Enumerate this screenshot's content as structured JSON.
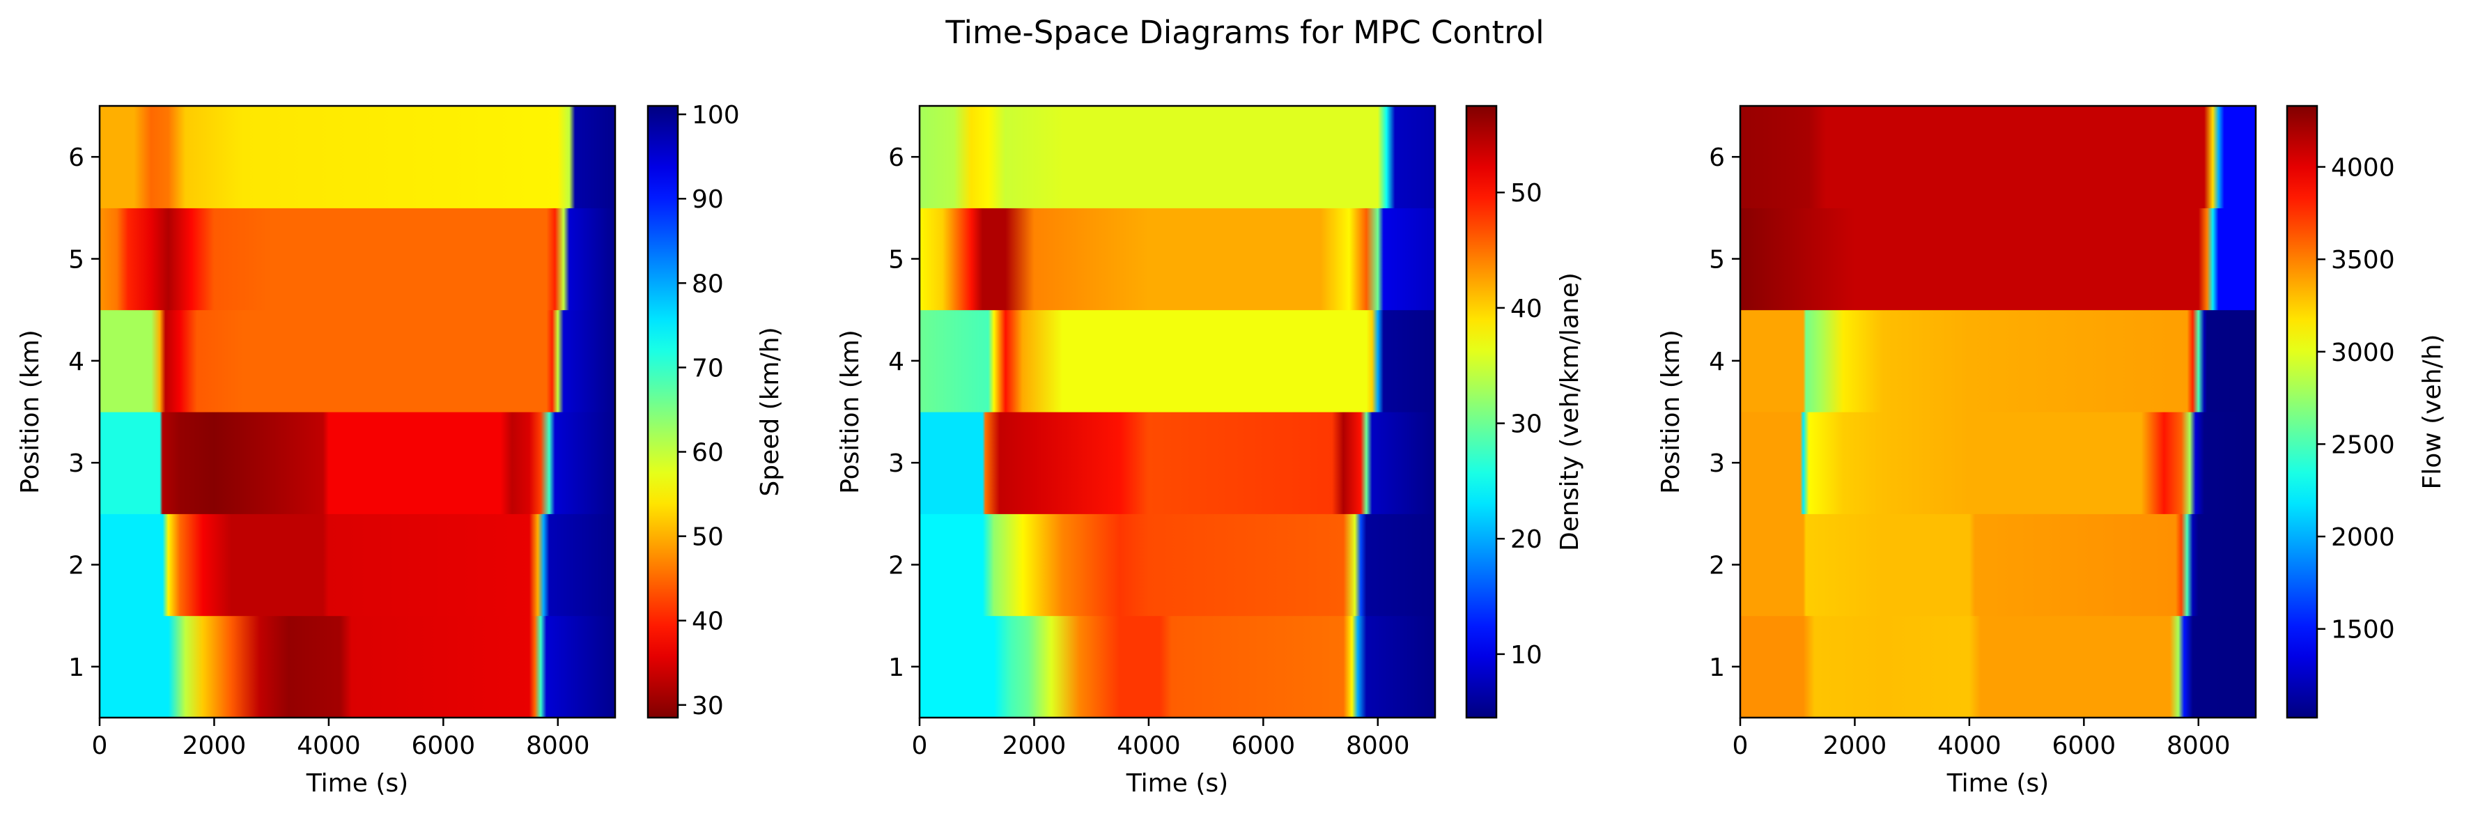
{
  "title": "Time-Space Diagrams for MPC Control",
  "chart_data": [
    {
      "type": "heatmap",
      "xlabel": "Time (s)",
      "ylabel": "Position (km)",
      "xlim": [
        0,
        9000
      ],
      "ylim": [
        0.5,
        6.5
      ],
      "xticks": [
        0,
        2000,
        4000,
        6000,
        8000
      ],
      "yticks": [
        1,
        2,
        3,
        4,
        5,
        6
      ],
      "colormap": "jet",
      "colorbar": {
        "label": "Speed (km/h)",
        "range": [
          28.5,
          101
        ],
        "reversed": true,
        "ticks": [
          30,
          40,
          50,
          60,
          70,
          80,
          90,
          100
        ]
      },
      "rows": [
        {
          "position": 1,
          "keys": [
            [
              0,
              75
            ],
            [
              1200,
              75
            ],
            [
              1500,
              60
            ],
            [
              1800,
              52
            ],
            [
              2300,
              44
            ],
            [
              2800,
              33
            ],
            [
              3300,
              30
            ],
            [
              4200,
              31
            ],
            [
              4400,
              35
            ],
            [
              7500,
              36
            ],
            [
              7600,
              45
            ],
            [
              7700,
              70
            ],
            [
              7800,
              95
            ],
            [
              9000,
              100
            ]
          ]
        },
        {
          "position": 2,
          "keys": [
            [
              0,
              75
            ],
            [
              1100,
              75
            ],
            [
              1200,
              55
            ],
            [
              1400,
              45
            ],
            [
              1800,
              37
            ],
            [
              2300,
              33
            ],
            [
              3000,
              33
            ],
            [
              3900,
              33
            ],
            [
              4000,
              35
            ],
            [
              7500,
              36
            ],
            [
              7650,
              50
            ],
            [
              7750,
              80
            ],
            [
              7850,
              97
            ],
            [
              9000,
              100
            ]
          ]
        },
        {
          "position": 3,
          "keys": [
            [
              0,
              72
            ],
            [
              1050,
              72
            ],
            [
              1100,
              32
            ],
            [
              1400,
              30
            ],
            [
              2000,
              29
            ],
            [
              3000,
              31
            ],
            [
              3900,
              33
            ],
            [
              4000,
              37
            ],
            [
              7000,
              37
            ],
            [
              7200,
              33
            ],
            [
              7500,
              35
            ],
            [
              7700,
              42
            ],
            [
              7850,
              70
            ],
            [
              7950,
              95
            ],
            [
              9000,
              100
            ]
          ]
        },
        {
          "position": 4,
          "keys": [
            [
              0,
              62
            ],
            [
              900,
              62
            ],
            [
              1050,
              50
            ],
            [
              1150,
              33
            ],
            [
              1400,
              37
            ],
            [
              1700,
              44
            ],
            [
              2500,
              45
            ],
            [
              4000,
              45
            ],
            [
              7800,
              45
            ],
            [
              7900,
              40
            ],
            [
              8000,
              60
            ],
            [
              8100,
              95
            ],
            [
              9000,
              100
            ]
          ]
        },
        {
          "position": 5,
          "keys": [
            [
              0,
              48
            ],
            [
              300,
              46
            ],
            [
              500,
              40
            ],
            [
              900,
              36
            ],
            [
              1200,
              32
            ],
            [
              1600,
              38
            ],
            [
              2000,
              44
            ],
            [
              3000,
              45
            ],
            [
              4000,
              45
            ],
            [
              7800,
              45
            ],
            [
              7950,
              40
            ],
            [
              8100,
              60
            ],
            [
              8200,
              95
            ],
            [
              9000,
              100
            ]
          ]
        },
        {
          "position": 6,
          "keys": [
            [
              0,
              50
            ],
            [
              600,
              50
            ],
            [
              900,
              45
            ],
            [
              1200,
              46
            ],
            [
              1500,
              52
            ],
            [
              2500,
              54
            ],
            [
              8000,
              55
            ],
            [
              8200,
              60
            ],
            [
              8300,
              98
            ],
            [
              9000,
              100
            ]
          ]
        }
      ]
    },
    {
      "type": "heatmap",
      "xlabel": "Time (s)",
      "ylabel": "Position (km)",
      "xlim": [
        0,
        9000
      ],
      "ylim": [
        0.5,
        6.5
      ],
      "xticks": [
        0,
        2000,
        4000,
        6000,
        8000
      ],
      "yticks": [
        1,
        2,
        3,
        4,
        5,
        6
      ],
      "colormap": "jet",
      "colorbar": {
        "label": "Density (veh/km/lane)",
        "range": [
          4.5,
          57.5
        ],
        "reversed": false,
        "ticks": [
          10,
          20,
          30,
          40,
          50
        ]
      },
      "rows": [
        {
          "position": 1,
          "keys": [
            [
              0,
              24
            ],
            [
              1300,
              24
            ],
            [
              1600,
              28
            ],
            [
              1900,
              30
            ],
            [
              2300,
              36
            ],
            [
              2800,
              44
            ],
            [
              3500,
              48
            ],
            [
              4200,
              48
            ],
            [
              4400,
              46
            ],
            [
              7400,
              45
            ],
            [
              7550,
              38
            ],
            [
              7650,
              20
            ],
            [
              7800,
              7
            ],
            [
              9000,
              5
            ]
          ]
        },
        {
          "position": 2,
          "keys": [
            [
              0,
              24
            ],
            [
              1100,
              24
            ],
            [
              1300,
              32
            ],
            [
              1800,
              38
            ],
            [
              2500,
              44
            ],
            [
              3500,
              48
            ],
            [
              4000,
              47
            ],
            [
              7400,
              46
            ],
            [
              7600,
              36
            ],
            [
              7700,
              15
            ],
            [
              7800,
              6
            ],
            [
              9000,
              5
            ]
          ]
        },
        {
          "position": 3,
          "keys": [
            [
              0,
              23
            ],
            [
              1100,
              23
            ],
            [
              1150,
              45
            ],
            [
              1400,
              54
            ],
            [
              2000,
              53
            ],
            [
              3500,
              50
            ],
            [
              4000,
              47
            ],
            [
              7200,
              48
            ],
            [
              7400,
              55
            ],
            [
              7700,
              50
            ],
            [
              7800,
              30
            ],
            [
              7900,
              8
            ],
            [
              9000,
              5
            ]
          ]
        },
        {
          "position": 4,
          "keys": [
            [
              0,
              30
            ],
            [
              1200,
              28
            ],
            [
              1300,
              38
            ],
            [
              1500,
              50
            ],
            [
              1800,
              42
            ],
            [
              2500,
              37
            ],
            [
              4000,
              37
            ],
            [
              7800,
              37
            ],
            [
              7900,
              40
            ],
            [
              8000,
              20
            ],
            [
              8100,
              6
            ],
            [
              9000,
              5
            ]
          ]
        },
        {
          "position": 5,
          "keys": [
            [
              0,
              38
            ],
            [
              400,
              40
            ],
            [
              900,
              50
            ],
            [
              1100,
              55
            ],
            [
              1500,
              55
            ],
            [
              2000,
              44
            ],
            [
              3000,
              43
            ],
            [
              4000,
              42
            ],
            [
              7000,
              42
            ],
            [
              7500,
              38
            ],
            [
              7800,
              46
            ],
            [
              8000,
              30
            ],
            [
              8100,
              10
            ],
            [
              9000,
              8
            ]
          ]
        },
        {
          "position": 6,
          "keys": [
            [
              0,
              33
            ],
            [
              600,
              34
            ],
            [
              900,
              39
            ],
            [
              1200,
              38
            ],
            [
              1500,
              35
            ],
            [
              2500,
              36
            ],
            [
              8000,
              36
            ],
            [
              8150,
              25
            ],
            [
              8300,
              8
            ],
            [
              9000,
              7
            ]
          ]
        }
      ]
    },
    {
      "type": "heatmap",
      "xlabel": "Time (s)",
      "ylabel": "Position (km)",
      "xlim": [
        0,
        9000
      ],
      "ylim": [
        0.5,
        6.5
      ],
      "xticks": [
        0,
        2000,
        4000,
        6000,
        8000
      ],
      "yticks": [
        1,
        2,
        3,
        4,
        5,
        6
      ],
      "colormap": "jet",
      "colorbar": {
        "label": "Flow (veh/h)",
        "range": [
          1020,
          4330
        ],
        "reversed": false,
        "ticks": [
          1500,
          2000,
          2500,
          3000,
          3500,
          4000
        ]
      },
      "rows": [
        {
          "position": 1,
          "keys": [
            [
              0,
              3450
            ],
            [
              1100,
              3450
            ],
            [
              1300,
              3280
            ],
            [
              2500,
              3300
            ],
            [
              4000,
              3280
            ],
            [
              4200,
              3400
            ],
            [
              7500,
              3400
            ],
            [
              7650,
              2800
            ],
            [
              7750,
              1500
            ],
            [
              7900,
              1050
            ],
            [
              9000,
              1030
            ]
          ]
        },
        {
          "position": 2,
          "keys": [
            [
              0,
              3400
            ],
            [
              1100,
              3400
            ],
            [
              1150,
              3250
            ],
            [
              2500,
              3300
            ],
            [
              4000,
              3300
            ],
            [
              4100,
              3400
            ],
            [
              7600,
              3450
            ],
            [
              7700,
              3700
            ],
            [
              7800,
              2500
            ],
            [
              7900,
              1200
            ],
            [
              8000,
              1050
            ],
            [
              9000,
              1030
            ]
          ]
        },
        {
          "position": 3,
          "keys": [
            [
              0,
              3400
            ],
            [
              1050,
              3400
            ],
            [
              1100,
              2200
            ],
            [
              1200,
              3100
            ],
            [
              1800,
              3250
            ],
            [
              2500,
              3300
            ],
            [
              4000,
              3350
            ],
            [
              7000,
              3350
            ],
            [
              7400,
              3850
            ],
            [
              7700,
              3600
            ],
            [
              7850,
              2800
            ],
            [
              7950,
              1300
            ],
            [
              8100,
              1050
            ],
            [
              9000,
              1030
            ]
          ]
        },
        {
          "position": 4,
          "keys": [
            [
              0,
              3380
            ],
            [
              1100,
              3380
            ],
            [
              1150,
              2650
            ],
            [
              1400,
              2800
            ],
            [
              1800,
              3150
            ],
            [
              2500,
              3300
            ],
            [
              4000,
              3350
            ],
            [
              7800,
              3400
            ],
            [
              7900,
              3800
            ],
            [
              8000,
              2500
            ],
            [
              8100,
              1200
            ],
            [
              8150,
              1040
            ],
            [
              9000,
              1030
            ]
          ]
        },
        {
          "position": 5,
          "keys": [
            [
              0,
              4300
            ],
            [
              1500,
              4150
            ],
            [
              2000,
              4100
            ],
            [
              8000,
              4100
            ],
            [
              8150,
              3500
            ],
            [
              8250,
              2200
            ],
            [
              8350,
              1450
            ],
            [
              9000,
              1450
            ]
          ]
        },
        {
          "position": 6,
          "keys": [
            [
              0,
              4250
            ],
            [
              1200,
              4200
            ],
            [
              1500,
              4100
            ],
            [
              8100,
              4100
            ],
            [
              8250,
              3200
            ],
            [
              8350,
              2000
            ],
            [
              8450,
              1450
            ],
            [
              9000,
              1450
            ]
          ]
        }
      ]
    }
  ]
}
